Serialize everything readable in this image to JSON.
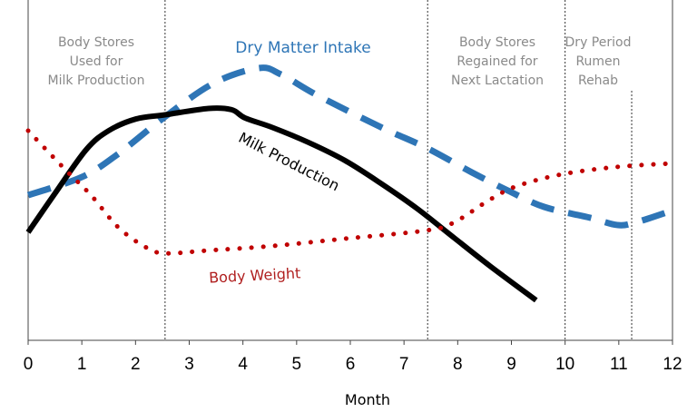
{
  "chart_data": {
    "type": "line",
    "title": "",
    "xlabel": "Month",
    "ylabel": "",
    "xlim": [
      0,
      12
    ],
    "ylim": [
      0,
      100
    ],
    "y_scale_note_hidden": true,
    "grid": false,
    "x_ticks": [
      "0",
      "1",
      "2",
      "3",
      "4",
      "5",
      "6",
      "7",
      "8",
      "9",
      "10",
      "11",
      "12"
    ],
    "series": [
      {
        "name": "Milk Production",
        "color": "#000000",
        "style": "solid",
        "points": [
          [
            0,
            34
          ],
          [
            0.49,
            46
          ],
          [
            1.08,
            60
          ],
          [
            1.5,
            66
          ],
          [
            2.01,
            69.7
          ],
          [
            2.55,
            71
          ],
          [
            3.36,
            73
          ],
          [
            3.79,
            72.6
          ],
          [
            4.04,
            70
          ],
          [
            4.55,
            67
          ],
          [
            5.22,
            62.3
          ],
          [
            5.9,
            56.6
          ],
          [
            6.57,
            49.4
          ],
          [
            7.25,
            41.4
          ],
          [
            7.93,
            32.3
          ],
          [
            8.6,
            23.4
          ],
          [
            9.46,
            12.6
          ]
        ]
      },
      {
        "name": "Dry Matter Intake",
        "color": "#2e75b6",
        "style": "dashed",
        "points": [
          [
            0,
            45.7
          ],
          [
            1,
            51.4
          ],
          [
            1.67,
            58.6
          ],
          [
            2.52,
            70
          ],
          [
            3.45,
            80.9
          ],
          [
            4.29,
            85.7
          ],
          [
            4.71,
            83.7
          ],
          [
            5.39,
            77.1
          ],
          [
            6.57,
            67.1
          ],
          [
            7.42,
            60.6
          ],
          [
            8.26,
            52.9
          ],
          [
            8.94,
            47.1
          ],
          [
            9.61,
            42
          ],
          [
            10.46,
            38.6
          ],
          [
            10.97,
            36.3
          ],
          [
            11.31,
            37.1
          ],
          [
            12,
            40.9
          ]
        ]
      },
      {
        "name": "Body Weight",
        "color": "#c00000",
        "style": "dotted",
        "points": [
          [
            0,
            66
          ],
          [
            0.66,
            54.3
          ],
          [
            1.17,
            45.7
          ],
          [
            1.67,
            35.7
          ],
          [
            2.18,
            29.4
          ],
          [
            2.55,
            27.4
          ],
          [
            3.36,
            28.3
          ],
          [
            4.55,
            29.7
          ],
          [
            5.9,
            32
          ],
          [
            7.42,
            34.6
          ],
          [
            7.93,
            37.1
          ],
          [
            8.6,
            44.3
          ],
          [
            9.11,
            48.6
          ],
          [
            9.95,
            52.3
          ],
          [
            10.97,
            54.6
          ],
          [
            12,
            55.7
          ]
        ]
      }
    ],
    "dividers": [
      2.55,
      7.44,
      10,
      11.24
    ],
    "regions": [
      {
        "lines": [
          "Body Stores",
          "Used for",
          "Milk Production"
        ]
      },
      {
        "lines": [
          "Body Stores",
          "Regained for",
          "Next Lactation"
        ]
      },
      {
        "lines": [
          "Dry Period",
          "Rumen",
          "Rehab"
        ]
      }
    ]
  }
}
